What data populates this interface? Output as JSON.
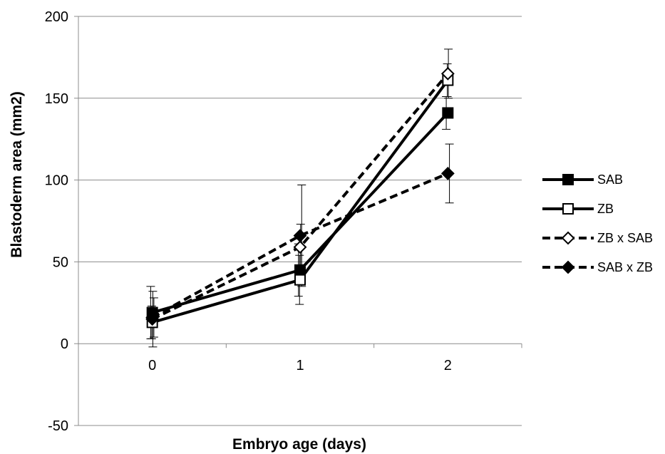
{
  "chart_data": {
    "type": "line",
    "title": "",
    "xlabel": "Embryo age (days)",
    "ylabel": "Blastoderm area (mm2)",
    "categories": [
      "0",
      "1",
      "2"
    ],
    "ylim": [
      -50,
      200
    ],
    "yticks": [
      -50,
      0,
      50,
      100,
      150,
      200
    ],
    "ytick_labels": [
      "-50",
      "0",
      "50",
      "100",
      "150",
      "200"
    ],
    "grid": "horizontal",
    "legend_position": "right",
    "series": [
      {
        "name": "SAB",
        "line_style": "solid",
        "marker": "filled-square",
        "values": [
          19,
          45,
          141
        ],
        "error": [
          16,
          16,
          10
        ]
      },
      {
        "name": "ZB",
        "line_style": "solid",
        "marker": "open-square",
        "values": [
          13,
          39,
          161
        ],
        "error": [
          10,
          15,
          10
        ]
      },
      {
        "name": "ZB x SAB",
        "line_style": "dashed",
        "marker": "open-diamond",
        "values": [
          15,
          59,
          165
        ],
        "error": [
          17,
          14,
          15
        ]
      },
      {
        "name": "SAB x ZB",
        "line_style": "dashed",
        "marker": "filled-diamond",
        "values": [
          16,
          66,
          104
        ],
        "error": [
          12,
          31,
          18
        ]
      }
    ]
  }
}
